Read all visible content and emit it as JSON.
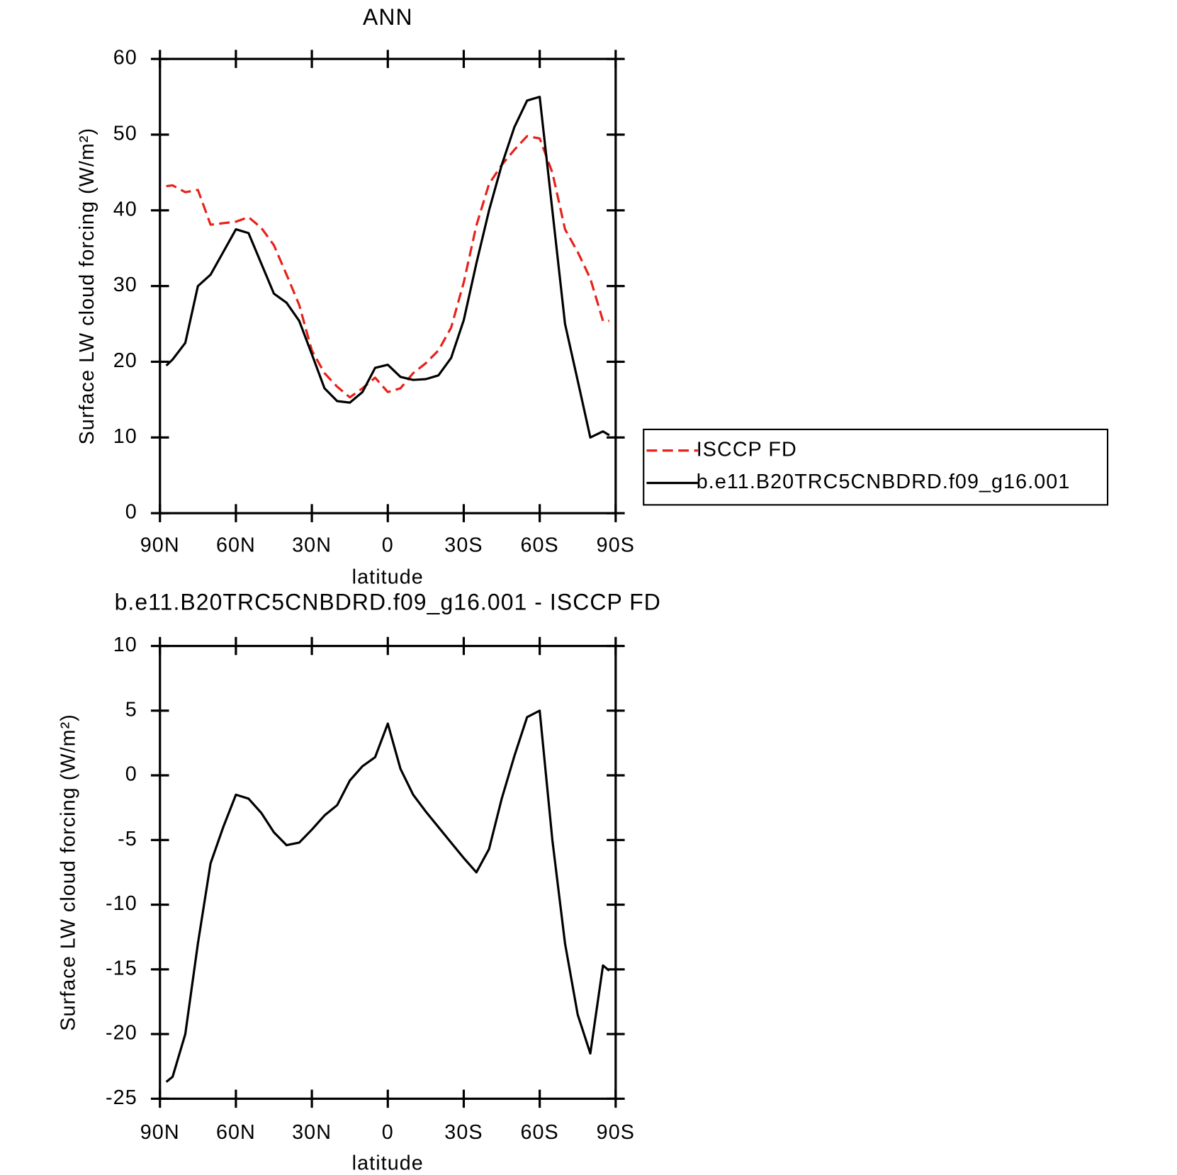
{
  "chart_data": [
    {
      "type": "line",
      "title": "ANN",
      "xlabel": "latitude",
      "ylabel": "Surface LW cloud forcing (W/m²)",
      "x": [
        87.5,
        85,
        80,
        75,
        70,
        65,
        60,
        55,
        50,
        45,
        40,
        35,
        30,
        25,
        20,
        15,
        10,
        5,
        0,
        -5,
        -10,
        -15,
        -20,
        -25,
        -30,
        -35,
        -40,
        -45,
        -50,
        -55,
        -60,
        -65,
        -70,
        -75,
        -80,
        -85,
        -87.5
      ],
      "series": [
        {
          "name": "ISCCP FD",
          "color": "#e8201a",
          "dash": true,
          "values": [
            43.2,
            43.3,
            42.4,
            42.7,
            38.1,
            38.3,
            38.5,
            39.1,
            37.7,
            35.4,
            31.5,
            27.5,
            21.5,
            18.5,
            16.7,
            15.3,
            16.5,
            17.9,
            16,
            16.5,
            18.5,
            19.8,
            21.5,
            24.5,
            30.5,
            38,
            43.5,
            46,
            48,
            49.8,
            49.5,
            45,
            37.5,
            34.5,
            31,
            25.4,
            25.4
          ]
        },
        {
          "name": "b.e11.B20TRC5CNBDRD.f09_g16.001",
          "color": "#000000",
          "dash": false,
          "values": [
            19.5,
            20.3,
            22.5,
            30,
            31.5,
            34.5,
            37.5,
            37,
            33,
            29,
            27.8,
            25.4,
            21,
            16.5,
            14.8,
            14.6,
            16,
            19.2,
            19.6,
            18,
            17.6,
            17.7,
            18.2,
            20.5,
            25.5,
            33,
            40,
            46,
            51,
            54.5,
            55,
            40,
            25,
            17.5,
            10,
            10.8,
            10.3
          ]
        }
      ],
      "xlim": [
        90,
        -90
      ],
      "xticks": [
        {
          "value": 90,
          "label": "90N"
        },
        {
          "value": 60,
          "label": "60N"
        },
        {
          "value": 30,
          "label": "30N"
        },
        0,
        {
          "value": -30,
          "label": "30S"
        },
        {
          "value": -60,
          "label": "60S"
        },
        {
          "value": -90,
          "label": "90S"
        }
      ],
      "ylim": [
        0,
        60
      ],
      "yticks": [
        0,
        10,
        20,
        30,
        40,
        50,
        60
      ],
      "legend": "right"
    },
    {
      "type": "line",
      "title": "b.e11.B20TRC5CNBDRD.f09_g16.001 - ISCCP FD",
      "xlabel": "latitude",
      "ylabel": "Surface LW cloud forcing (W/m²)",
      "x": [
        87.5,
        85,
        80,
        75,
        70,
        65,
        60,
        55,
        50,
        45,
        40,
        35,
        30,
        25,
        20,
        15,
        10,
        5,
        0,
        -5,
        -10,
        -15,
        -20,
        -25,
        -30,
        -35,
        -40,
        -45,
        -50,
        -55,
        -60,
        -65,
        -70,
        -75,
        -80,
        -85,
        -87.5
      ],
      "series": [
        {
          "color": "#000000",
          "dash": false,
          "values": [
            -23.7,
            -23.3,
            -20,
            -13,
            -6.8,
            -4,
            -1.5,
            -1.8,
            -2.9,
            -4.4,
            -5.4,
            -5.2,
            -4.2,
            -3.1,
            -2.3,
            -0.4,
            0.7,
            1.4,
            4,
            0.5,
            -1.5,
            -2.8,
            -4,
            -5.2,
            -6.4,
            -7.5,
            -5.7,
            -1.8,
            1.5,
            4.5,
            5,
            -5,
            -13,
            -18.5,
            -21.5,
            -14.7,
            -15.1
          ]
        }
      ],
      "xlim": [
        90,
        -90
      ],
      "xticks": [
        {
          "value": 90,
          "label": "90N"
        },
        {
          "value": 60,
          "label": "60N"
        },
        {
          "value": 30,
          "label": "30N"
        },
        0,
        {
          "value": -30,
          "label": "30S"
        },
        {
          "value": -60,
          "label": "60S"
        },
        {
          "value": -90,
          "label": "90S"
        }
      ],
      "ylim": [
        -25,
        10
      ],
      "yticks": [
        -25,
        -20,
        -15,
        -10,
        -5,
        0,
        5,
        10
      ]
    }
  ]
}
